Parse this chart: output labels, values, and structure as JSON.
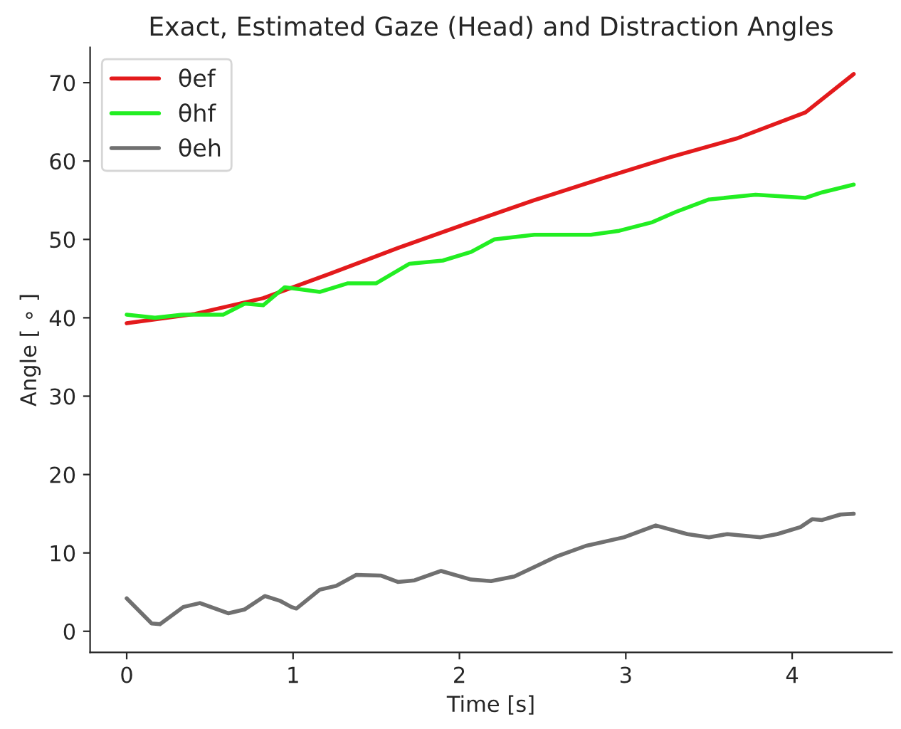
{
  "chart_data": {
    "type": "line",
    "title": "Exact, Estimated Gaze (Head) and Distraction Angles",
    "xlabel": "Time [s]",
    "ylabel": "Angle [ ∘ ]",
    "xlim": [
      -0.22,
      4.6
    ],
    "ylim": [
      -2.7,
      74.5
    ],
    "xticks": [
      0,
      1,
      2,
      3,
      4
    ],
    "yticks": [
      0,
      10,
      20,
      30,
      40,
      50,
      60,
      70
    ],
    "grid": false,
    "legend": "top left",
    "line_style": "solid",
    "series": [
      {
        "name": "θef",
        "color": "#e31a1c",
        "x": [
          0,
          0.41,
          0.82,
          1.22,
          1.63,
          2.04,
          2.45,
          2.86,
          3.27,
          3.67,
          4.08,
          4.37
        ],
        "values": [
          39.3,
          40.5,
          42.5,
          45.6,
          48.9,
          52.0,
          55.0,
          57.8,
          60.5,
          62.9,
          66.2,
          71.1
        ]
      },
      {
        "name": "θhf",
        "color": "#22ee22",
        "x": [
          0,
          0.17,
          0.34,
          0.58,
          0.71,
          0.82,
          0.95,
          1.16,
          1.33,
          1.5,
          1.7,
          1.9,
          2.07,
          2.21,
          2.45,
          2.79,
          2.96,
          3.16,
          3.3,
          3.5,
          3.78,
          4.08,
          4.18,
          4.37
        ],
        "values": [
          40.4,
          40.0,
          40.4,
          40.4,
          41.8,
          41.6,
          43.9,
          43.3,
          44.4,
          44.4,
          46.9,
          47.3,
          48.4,
          50.0,
          50.6,
          50.6,
          51.1,
          52.2,
          53.5,
          55.1,
          55.7,
          55.3,
          56.0,
          57.0
        ]
      },
      {
        "name": "θeh",
        "color": "#707070",
        "x": [
          0,
          0.15,
          0.2,
          0.34,
          0.44,
          0.61,
          0.71,
          0.83,
          0.92,
          0.99,
          1.02,
          1.16,
          1.26,
          1.38,
          1.53,
          1.63,
          1.73,
          1.89,
          2.07,
          2.19,
          2.33,
          2.59,
          2.76,
          2.99,
          3.18,
          3.37,
          3.5,
          3.61,
          3.71,
          3.81,
          3.91,
          4.05,
          4.12,
          4.18,
          4.29,
          4.37
        ],
        "values": [
          4.2,
          1.0,
          0.9,
          3.1,
          3.6,
          2.3,
          2.8,
          4.5,
          3.9,
          3.1,
          2.9,
          5.3,
          5.8,
          7.2,
          7.1,
          6.3,
          6.5,
          7.7,
          6.6,
          6.4,
          7.0,
          9.6,
          10.9,
          12.0,
          13.5,
          12.4,
          12.0,
          12.4,
          12.2,
          12.0,
          12.4,
          13.3,
          14.3,
          14.2,
          14.9,
          15.0
        ]
      }
    ]
  }
}
